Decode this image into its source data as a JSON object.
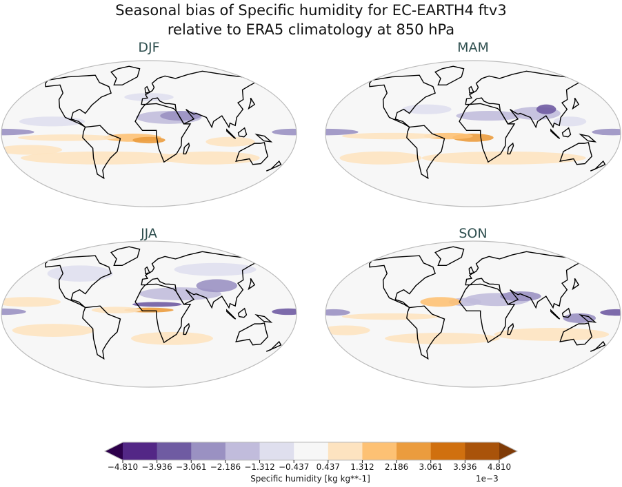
{
  "title_line1": "Seasonal bias of Specific humidity for EC-EARTH4 ftv3",
  "title_line2": "relative to ERA5 climatology at 850 hPa",
  "panels": [
    {
      "title": "DJF"
    },
    {
      "title": "MAM"
    },
    {
      "title": "JJA"
    },
    {
      "title": "SON"
    }
  ],
  "colorbar": {
    "label": "Specific humidity [kg kg**-1]",
    "scale": "1e−3",
    "ticks": [
      "−4.810",
      "−3.936",
      "−3.061",
      "−2.186",
      "−1.312",
      "−0.437",
      "0.437",
      "1.312",
      "2.186",
      "3.061",
      "3.936",
      "4.810"
    ],
    "colors": [
      "#2d004b",
      "#532786",
      "#6f5ba2",
      "#9a91c2",
      "#c1bcdc",
      "#dfdfee",
      "#f7f7f7",
      "#fde3c0",
      "#fdc174",
      "#eb9c3e",
      "#d0700f",
      "#a9530a",
      "#7f3b08"
    ],
    "extend": "both"
  },
  "colormap": "PuOr_r",
  "projection": "Robinson"
}
